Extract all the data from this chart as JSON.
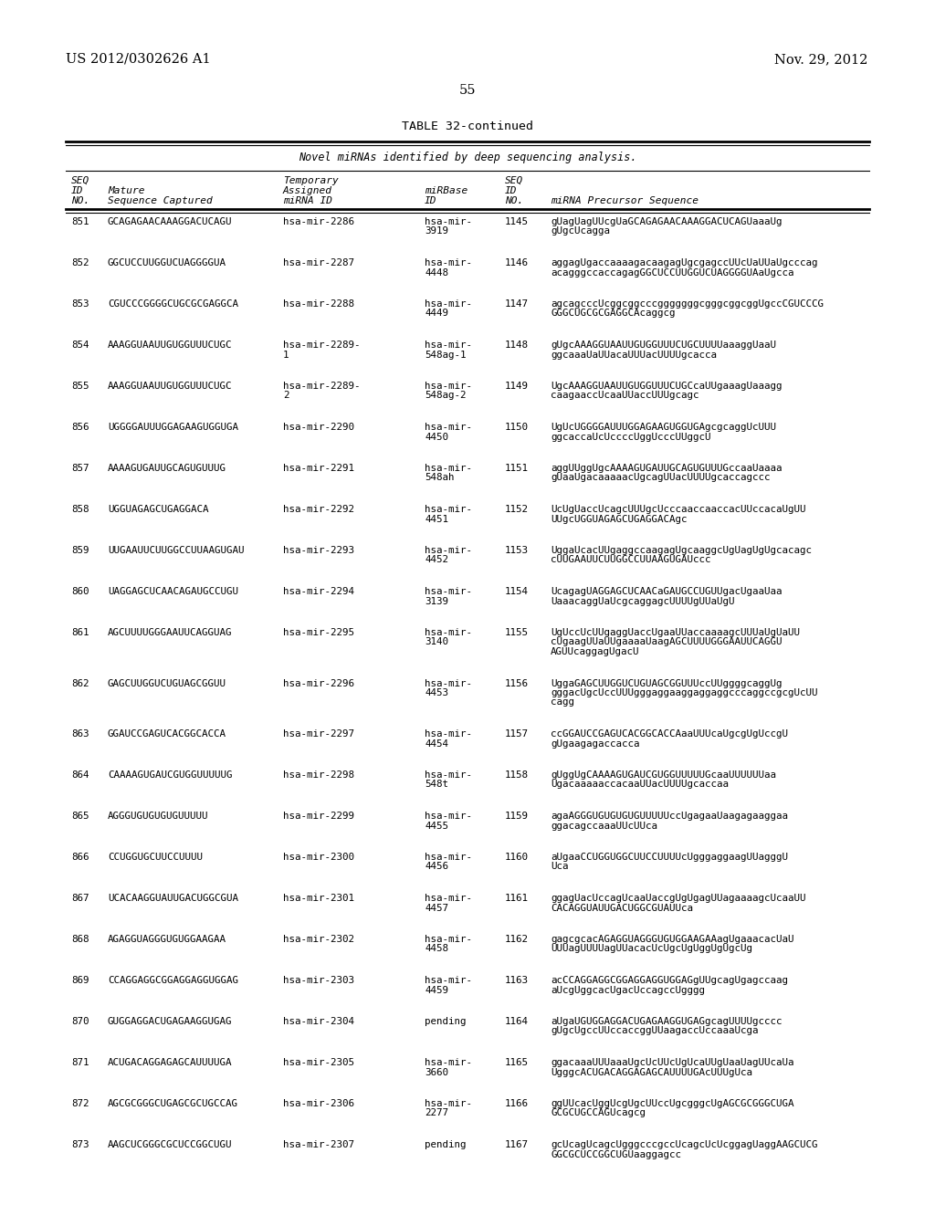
{
  "header_left": "US 2012/0302626 A1",
  "header_right": "Nov. 29, 2012",
  "page_number": "55",
  "table_title": "TABLE 32-continued",
  "table_subtitle": "Novel miRNAs identified by deep sequencing analysis.",
  "rows": [
    [
      "851",
      "GCAGAGAACAAAGGACUCAGU",
      "hsa-mir-2286",
      "hsa-mir-\n3919",
      "1145",
      "gUagUagUUcgUaGCAGAGAACAAAGGACUCAGUaaaUg\ngUgcUcagga"
    ],
    [
      "852",
      "GGCUCCUUGGUCUAGGGGUA",
      "hsa-mir-2287",
      "hsa-mir-\n4448",
      "1146",
      "aggagUgaccaaaagacaagagUgcgagccUUcUaUUaUgcccag\nacagggccaccagagGGCUCCUUGGUCUAGGGGUAaUgcca"
    ],
    [
      "853",
      "CGUCCCGGGGCUGCGCGAGGCA",
      "hsa-mir-2288",
      "hsa-mir-\n4449",
      "1147",
      "agcagcccUcggcggcccgggggggcgggcggcggUgccCGUCCCG\nGGGCUGCGCGAGGCAcaggcg"
    ],
    [
      "854",
      "AAAGGUAAUUGUGGUUUCUGC",
      "hsa-mir-2289-\n1",
      "hsa-mir-\n548ag-1",
      "1148",
      "gUgcAAAGGUAAUUGUGGUUUCUGCUUUUaaaggUaaU\nggcaaaUaUUacaUUUacUUUUgcacca"
    ],
    [
      "855",
      "AAAGGUAAUUGUGGUUUCUGC",
      "hsa-mir-2289-\n2",
      "hsa-mir-\n548ag-2",
      "1149",
      "UgcAAAGGUAAUUGUGGUUUCUGCcaUUgaaagUaaagg\ncaagaaccUcaaUUaccUUUgcagc"
    ],
    [
      "856",
      "UGGGGAUUUGGAGAAGUGGUGA",
      "hsa-mir-2290",
      "hsa-mir-\n4450",
      "1150",
      "UgUcUGGGGAUUUGGAGAAGUGGUGAgcgcaggUcUUU\nggcaccaUcUccccUggUcccUUggcU"
    ],
    [
      "857",
      "AAAAGUGAUUGCAGUGUUUG",
      "hsa-mir-2291",
      "hsa-mir-\n548ah",
      "1151",
      "aggUUggUgcAAAAGUGAUUGCAGUGUUUGccaaUaaaa\ngUaaUgacaaaaacUgcagUUacUUUUgcaccagccc"
    ],
    [
      "858",
      "UGGUAGAGCUGAGGACA",
      "hsa-mir-2292",
      "hsa-mir-\n4451",
      "1152",
      "UcUgUaccUcagcUUUgcUcccaaccaaccacUUccacaUgUU\nUUgcUGGUAGAGCUGAGGACAgc"
    ],
    [
      "859",
      "UUGAAUUCUUGGCCUUAAGUGAU",
      "hsa-mir-2293",
      "hsa-mir-\n4452",
      "1153",
      "UggaUcacUUgaggccaagagUgcaaggcUgUagUgUgcacagc\ncUUGAAUUCUUGGCCUUAAGUGAUccc"
    ],
    [
      "860",
      "UAGGAGCUCAACAGAUGCCUGU",
      "hsa-mir-2294",
      "hsa-mir-\n3139",
      "1154",
      "UcagagUAGGAGCUCAACaGAUGCCUGUUgacUgaaUaa\nUaaacaggUaUcgcaggagcUUUUgUUaUgU"
    ],
    [
      "861",
      "AGCUUUUGGGAAUUCAGGUAG",
      "hsa-mir-2295",
      "hsa-mir-\n3140",
      "1155",
      "UgUccUcUUgaggUaccUgaaUUaccaaaagcUUUaUgUaUU\ncUgaagUUaUUgaaaaUaagAGCUUUUGGGAAUUCAGGU\nAGUUcaggagUgacU"
    ],
    [
      "862",
      "GAGCUUGGUCUGUAGCGGUU",
      "hsa-mir-2296",
      "hsa-mir-\n4453",
      "1156",
      "UggaGAGCUUGGUCUGUAGCGGUUUccUUggggcaggUg\ngggacUgcUccUUUgggaggaaggaggaggcccaggccgcgUcUU\ncagg"
    ],
    [
      "863",
      "GGAUCCGAGUCACGGCACCA",
      "hsa-mir-2297",
      "hsa-mir-\n4454",
      "1157",
      "ccGGAUCCGAGUCACGGCACCAaaUUUcaUgcgUgUccgU\ngUgaagagaccacca"
    ],
    [
      "864",
      "CAAAAGUGAUCGUGGUUUUUG",
      "hsa-mir-2298",
      "hsa-mir-\n548t",
      "1158",
      "gUggUgCAAAAGUGAUCGUGGUUUUUGcaaUUUUUUaa\nUgacaaaaaccacaaUUacUUUUgcaccaa"
    ],
    [
      "865",
      "AGGGUGUGUGUGUUUUU",
      "hsa-mir-2299",
      "hsa-mir-\n4455",
      "1159",
      "agaAGGGUGUGUGUGUUUUUccUgagaaUaagagaaggaa\nggacagccaaaUUcUUca"
    ],
    [
      "866",
      "CCUGGUGCUUCCUUUU",
      "hsa-mir-2300",
      "hsa-mir-\n4456",
      "1160",
      "aUgaaCCUGGUGGCUUCCUUUUcUgggaggaagUUagggU\nUca"
    ],
    [
      "867",
      "UCACAAGGUAUUGACUGGCGUA",
      "hsa-mir-2301",
      "hsa-mir-\n4457",
      "1161",
      "ggagUacUccagUcaaUaccgUgUgagUUagaaaagcUcaaUU\nCACAGGUAUUGACUGGCGUAUUca"
    ],
    [
      "868",
      "AGAGGUAGGGUGUGGAAGAA",
      "hsa-mir-2302",
      "hsa-mir-\n4458",
      "1162",
      "gagcgcacAGAGGUAGGGUGUGGAAGAAagUgaaacacUaU\nUUUagUUUUagUUacacUcUgcUgUggUgUgcUg"
    ],
    [
      "869",
      "CCAGGAGGCGGAGGAGGUGGAG",
      "hsa-mir-2303",
      "hsa-mir-\n4459",
      "1163",
      "acCCAGGAGGCGGAGGAGGUGGAGgUUgcagUgagccaag\naUcgUggcacUgacUccagccUgggg"
    ],
    [
      "870",
      "GUGGAGGACUGAGAAGGUGAG",
      "hsa-mir-2304",
      "pending",
      "1164",
      "aUgaUGUGGAGGACUGAGAAGGUGAGgcagUUUUgcccc\ngUgcUgccUUccaccggUUaagaccUccaaaUcga"
    ],
    [
      "871",
      "ACUGACAGGAGAGCAUUUUGA",
      "hsa-mir-2305",
      "hsa-mir-\n3660",
      "1165",
      "ggacaaaUUUaaaUgcUcUUcUgUcaUUgUaaUagUUcaUa\nUgggcACUGACAGGAGAGCAUUUUGAcUUUgUca"
    ],
    [
      "872",
      "AGCGCGGGCUGAGCGCUGCCAG",
      "hsa-mir-2306",
      "hsa-mir-\n2277",
      "1166",
      "ggUUcacUggUcgUgcUUccUgcgggcUgAGCGCGGGCUGA\nGCGCUGCCAGUcagcg"
    ],
    [
      "873",
      "AAGCUCGGGCGCUCCGGCUGU",
      "hsa-mir-2307",
      "pending",
      "1167",
      "gcUcagUcagcUgggcccgccUcagcUcUcggagUaggAAGCUCG\nGGCGCUCCGGCUGUaaggagcc"
    ]
  ]
}
